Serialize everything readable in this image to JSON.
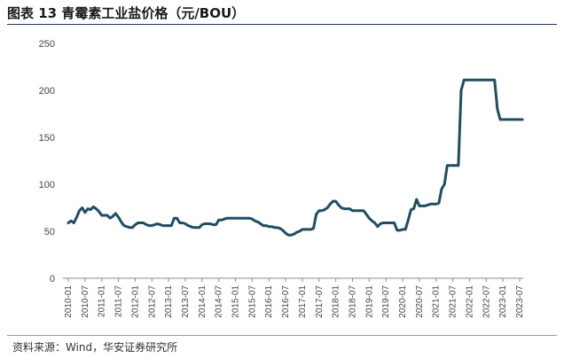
{
  "header": {
    "title": "图表 13 青霉素工业盐价格（元/BOU）"
  },
  "footer": {
    "source": "资料来源：Wind，华安证券研究所"
  },
  "chart_data": {
    "type": "line",
    "title": "图表 13 青霉素工业盐价格（元/BOU）",
    "xlabel": "",
    "ylabel": "",
    "ylim": [
      0,
      250
    ],
    "yticks": [
      0,
      50,
      100,
      150,
      200,
      250
    ],
    "grid": false,
    "xticks": [
      "2010-01",
      "2010-07",
      "2011-01",
      "2011-07",
      "2012-01",
      "2012-07",
      "2013-01",
      "2013-07",
      "2014-01",
      "2014-07",
      "2015-01",
      "2015-07",
      "2016-01",
      "2016-07",
      "2017-01",
      "2017-07",
      "2018-01",
      "2018-07",
      "2019-01",
      "2019-07",
      "2020-01",
      "2020-07",
      "2021-01",
      "2021-07",
      "2022-01",
      "2022-07",
      "2023-01",
      "2023-07"
    ],
    "line_color": "#1f4e64",
    "series": [
      {
        "points": [
          [
            "2010-01",
            59
          ],
          [
            "2010-02",
            61
          ],
          [
            "2010-03",
            59
          ],
          [
            "2010-04",
            65
          ],
          [
            "2010-05",
            72
          ],
          [
            "2010-06",
            75
          ],
          [
            "2010-07",
            70
          ],
          [
            "2010-08",
            74
          ],
          [
            "2010-09",
            73
          ],
          [
            "2010-10",
            76
          ],
          [
            "2010-11",
            74
          ],
          [
            "2010-12",
            71
          ],
          [
            "2011-01",
            67
          ],
          [
            "2011-02",
            67
          ],
          [
            "2011-03",
            67
          ],
          [
            "2011-04",
            64
          ],
          [
            "2011-05",
            66
          ],
          [
            "2011-06",
            69
          ],
          [
            "2011-07",
            65
          ],
          [
            "2011-08",
            60
          ],
          [
            "2011-09",
            56
          ],
          [
            "2011-10",
            55
          ],
          [
            "2011-11",
            54
          ],
          [
            "2011-12",
            54
          ],
          [
            "2012-01",
            57
          ],
          [
            "2012-02",
            59
          ],
          [
            "2012-03",
            59
          ],
          [
            "2012-04",
            59
          ],
          [
            "2012-05",
            57
          ],
          [
            "2012-06",
            56
          ],
          [
            "2012-07",
            56
          ],
          [
            "2012-08",
            57
          ],
          [
            "2012-09",
            58
          ],
          [
            "2012-10",
            57
          ],
          [
            "2012-11",
            56
          ],
          [
            "2012-12",
            56
          ],
          [
            "2013-01",
            56
          ],
          [
            "2013-02",
            56
          ],
          [
            "2013-03",
            64
          ],
          [
            "2013-04",
            64
          ],
          [
            "2013-05",
            59
          ],
          [
            "2013-06",
            59
          ],
          [
            "2013-07",
            58
          ],
          [
            "2013-08",
            56
          ],
          [
            "2013-09",
            55
          ],
          [
            "2013-10",
            54
          ],
          [
            "2013-11",
            54
          ],
          [
            "2013-12",
            54
          ],
          [
            "2014-01",
            57
          ],
          [
            "2014-02",
            58
          ],
          [
            "2014-03",
            58
          ],
          [
            "2014-04",
            58
          ],
          [
            "2014-05",
            57
          ],
          [
            "2014-06",
            57
          ],
          [
            "2014-07",
            62
          ],
          [
            "2014-08",
            62
          ],
          [
            "2014-09",
            63
          ],
          [
            "2014-10",
            64
          ],
          [
            "2014-11",
            64
          ],
          [
            "2014-12",
            64
          ],
          [
            "2015-01",
            64
          ],
          [
            "2015-02",
            64
          ],
          [
            "2015-03",
            64
          ],
          [
            "2015-04",
            64
          ],
          [
            "2015-05",
            64
          ],
          [
            "2015-06",
            64
          ],
          [
            "2015-07",
            63
          ],
          [
            "2015-08",
            61
          ],
          [
            "2015-09",
            60
          ],
          [
            "2015-10",
            58
          ],
          [
            "2015-11",
            56
          ],
          [
            "2015-12",
            56
          ],
          [
            "2016-01",
            55
          ],
          [
            "2016-02",
            55
          ],
          [
            "2016-03",
            54
          ],
          [
            "2016-04",
            54
          ],
          [
            "2016-05",
            53
          ],
          [
            "2016-06",
            51
          ],
          [
            "2016-07",
            48
          ],
          [
            "2016-08",
            46
          ],
          [
            "2016-09",
            46
          ],
          [
            "2016-10",
            47
          ],
          [
            "2016-11",
            49
          ],
          [
            "2016-12",
            50
          ],
          [
            "2017-01",
            52
          ],
          [
            "2017-02",
            52
          ],
          [
            "2017-03",
            52
          ],
          [
            "2017-04",
            52
          ],
          [
            "2017-05",
            53
          ],
          [
            "2017-06",
            68
          ],
          [
            "2017-07",
            72
          ],
          [
            "2017-08",
            72
          ],
          [
            "2017-09",
            73
          ],
          [
            "2017-10",
            75
          ],
          [
            "2017-11",
            79
          ],
          [
            "2017-12",
            82
          ],
          [
            "2018-01",
            82
          ],
          [
            "2018-02",
            78
          ],
          [
            "2018-03",
            75
          ],
          [
            "2018-04",
            74
          ],
          [
            "2018-05",
            74
          ],
          [
            "2018-06",
            74
          ],
          [
            "2018-07",
            72
          ],
          [
            "2018-08",
            72
          ],
          [
            "2018-09",
            72
          ],
          [
            "2018-10",
            72
          ],
          [
            "2018-11",
            72
          ],
          [
            "2018-12",
            68
          ],
          [
            "2019-01",
            64
          ],
          [
            "2019-02",
            61
          ],
          [
            "2019-03",
            59
          ],
          [
            "2019-04",
            55
          ],
          [
            "2019-05",
            58
          ],
          [
            "2019-06",
            59
          ],
          [
            "2019-07",
            59
          ],
          [
            "2019-08",
            59
          ],
          [
            "2019-09",
            59
          ],
          [
            "2019-10",
            59
          ],
          [
            "2019-11",
            51
          ],
          [
            "2019-12",
            51
          ],
          [
            "2020-01",
            52
          ],
          [
            "2020-02",
            52
          ],
          [
            "2020-03",
            62
          ],
          [
            "2020-04",
            73
          ],
          [
            "2020-05",
            74
          ],
          [
            "2020-06",
            84
          ],
          [
            "2020-07",
            77
          ],
          [
            "2020-08",
            77
          ],
          [
            "2020-09",
            77
          ],
          [
            "2020-10",
            78
          ],
          [
            "2020-11",
            79
          ],
          [
            "2020-12",
            79
          ],
          [
            "2021-01",
            79
          ],
          [
            "2021-02",
            80
          ],
          [
            "2021-03",
            95
          ],
          [
            "2021-04",
            100
          ],
          [
            "2021-05",
            120
          ],
          [
            "2021-06",
            120
          ],
          [
            "2021-07",
            120
          ],
          [
            "2021-08",
            120
          ],
          [
            "2021-09",
            120
          ],
          [
            "2021-10",
            200
          ],
          [
            "2021-11",
            211
          ],
          [
            "2021-12",
            211
          ],
          [
            "2022-01",
            211
          ],
          [
            "2022-02",
            211
          ],
          [
            "2022-03",
            211
          ],
          [
            "2022-04",
            211
          ],
          [
            "2022-05",
            211
          ],
          [
            "2022-06",
            211
          ],
          [
            "2022-07",
            211
          ],
          [
            "2022-08",
            211
          ],
          [
            "2022-09",
            211
          ],
          [
            "2022-10",
            211
          ],
          [
            "2022-11",
            180
          ],
          [
            "2022-12",
            169
          ],
          [
            "2023-01",
            169
          ],
          [
            "2023-02",
            169
          ],
          [
            "2023-03",
            169
          ],
          [
            "2023-04",
            169
          ],
          [
            "2023-05",
            169
          ],
          [
            "2023-06",
            169
          ],
          [
            "2023-07",
            169
          ],
          [
            "2023-08",
            169
          ]
        ]
      }
    ]
  }
}
